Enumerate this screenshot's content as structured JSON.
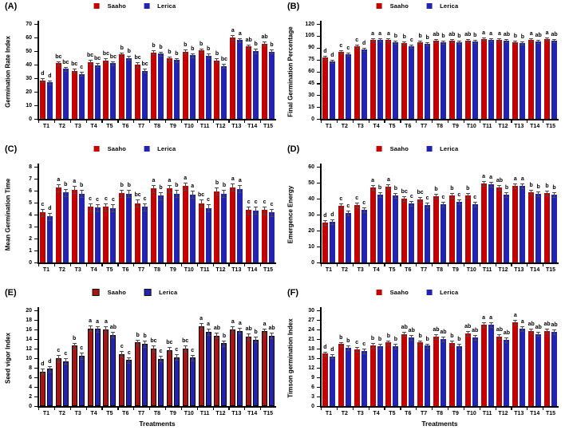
{
  "figure": {
    "legend_labels": [
      "Saaho",
      "Lerica"
    ],
    "colors": {
      "saaho": "#c40000",
      "lerica": "#2323b2",
      "saaho_dark": "#a81414",
      "error": "#4a4a4a"
    },
    "xlabel": "Treatments"
  },
  "chart_data": [
    {
      "panel": "(A)",
      "type": "bar",
      "ylabel": "Germination Rate Index",
      "ylim": [
        0,
        70
      ],
      "ytick_step": 10,
      "error_bar": 1.5,
      "grid": false,
      "legend_position": "top-center",
      "show_xlabel": false,
      "bar_border": false,
      "categories": [
        "T1",
        "T2",
        "T3",
        "T4",
        "T5",
        "T6",
        "T7",
        "T8",
        "T9",
        "T10",
        "T11",
        "T12",
        "T13",
        "T14",
        "T15"
      ],
      "series": [
        {
          "name": "Saaho",
          "color": "#c40000",
          "values": [
            28.5,
            41,
            35.5,
            42,
            43,
            47.5,
            40,
            49,
            44.5,
            49.5,
            50.5,
            43,
            60,
            53.5,
            55.5
          ],
          "letters": [
            "d",
            "bc",
            "bc",
            "bc",
            "bc",
            "b",
            "bc",
            "b",
            "b",
            "b",
            "b",
            "b",
            "a",
            "ab",
            "ab"
          ]
        },
        {
          "name": "Lerica",
          "color": "#2323b2",
          "values": [
            27,
            37,
            33,
            39.5,
            41,
            45,
            35.5,
            48,
            43.5,
            47,
            46.5,
            39,
            58,
            50,
            49.5
          ],
          "letters": [
            "d",
            "bc",
            "c",
            "bc",
            "bc",
            "b",
            "bc",
            "b",
            "b",
            "b",
            "b",
            "bc",
            "a",
            "b",
            "b"
          ]
        }
      ]
    },
    {
      "panel": "(B)",
      "type": "bar",
      "ylabel": "Final Germination Percentage",
      "ylim": [
        0,
        120
      ],
      "ytick_step": 15,
      "error_bar": 2,
      "grid": false,
      "legend_position": "top-center",
      "show_xlabel": false,
      "bar_border": false,
      "categories": [
        "T1",
        "T2",
        "T3",
        "T4",
        "T5",
        "T6",
        "T7",
        "T8",
        "T9",
        "T10",
        "T11",
        "T12",
        "T13",
        "T14",
        "T15"
      ],
      "series": [
        {
          "name": "Saaho",
          "color": "#c40000",
          "values": [
            78,
            85,
            92,
            100,
            100,
            96,
            97,
            99,
            99,
            99,
            101,
            100,
            97,
            100,
            101
          ],
          "letters": [
            "d",
            "c",
            "c",
            "a",
            "a",
            "b",
            "b",
            "ab",
            "ab",
            "ab",
            "a",
            "a",
            "b",
            "a",
            "a"
          ]
        },
        {
          "name": "Lerica",
          "color": "#2323b2",
          "values": [
            73,
            82,
            88,
            100,
            97,
            92,
            95,
            97,
            97,
            98,
            100,
            99,
            96,
            98,
            99
          ],
          "letters": [
            "d",
            "c",
            "d",
            "a",
            "b",
            "c",
            "b",
            "b",
            "b",
            "b",
            "a",
            "ab",
            "b",
            "ab",
            "ab"
          ]
        }
      ]
    },
    {
      "panel": "(C)",
      "type": "bar",
      "ylabel": "Mean Germination Time",
      "ylim": [
        0,
        8
      ],
      "ytick_step": 1,
      "error_bar": 0.3,
      "grid": false,
      "legend_position": "top-center",
      "show_xlabel": false,
      "bar_border": false,
      "categories": [
        "T1",
        "T2",
        "T3",
        "T4",
        "T5",
        "T6",
        "T7",
        "T8",
        "T9",
        "T10",
        "T11",
        "T12",
        "T13",
        "T14",
        "T15"
      ],
      "series": [
        {
          "name": "Saaho",
          "color": "#c40000",
          "values": [
            4.2,
            6.25,
            6.1,
            4.65,
            4.65,
            5.8,
            4.95,
            6.2,
            6.2,
            6.4,
            4.95,
            5.95,
            6.3,
            4.4,
            4.4
          ],
          "letters": [
            "c",
            "a",
            "a",
            "c",
            "c",
            "b",
            "bc",
            "a",
            "a",
            "a",
            "bc",
            "b",
            "a",
            "c",
            "c"
          ]
        },
        {
          "name": "Lerica",
          "color": "#2323b2",
          "values": [
            3.85,
            5.85,
            5.75,
            4.6,
            4.55,
            5.75,
            4.65,
            5.6,
            5.75,
            5.7,
            4.55,
            5.75,
            6.15,
            4.35,
            4.2
          ],
          "letters": [
            "d",
            "b",
            "b",
            "c",
            "c",
            "b",
            "c",
            "b",
            "b",
            "a",
            "c",
            "b",
            "a",
            "c",
            "c"
          ]
        }
      ]
    },
    {
      "panel": "(D)",
      "type": "bar",
      "ylabel": "Emergence Energy",
      "ylim": [
        0,
        60
      ],
      "ytick_step": 10,
      "error_bar": 1.5,
      "grid": false,
      "legend_position": "top-center",
      "show_xlabel": false,
      "bar_border": false,
      "categories": [
        "T1",
        "T2",
        "T3",
        "T4",
        "T5",
        "T6",
        "T7",
        "T8",
        "T9",
        "T10",
        "T11",
        "T12",
        "T13",
        "T14",
        "T15"
      ],
      "series": [
        {
          "name": "Saaho",
          "color": "#c40000",
          "values": [
            25,
            35.5,
            36,
            47,
            47.5,
            40,
            39.5,
            41.5,
            42,
            42,
            49.5,
            47,
            48,
            44,
            43.5
          ],
          "letters": [
            "d",
            "c",
            "c",
            "a",
            "a",
            "bc",
            "bc",
            "b",
            "b",
            "b",
            "a",
            "ab",
            "a",
            "b",
            "b"
          ]
        },
        {
          "name": "Lerica",
          "color": "#2323b2",
          "values": [
            25.5,
            31,
            33,
            42.5,
            42,
            37,
            36,
            36.5,
            38,
            36.5,
            49,
            42.5,
            48,
            43,
            42.5
          ],
          "letters": [
            "d",
            "c",
            "c",
            "b",
            "b",
            "c",
            "c",
            "c",
            "c",
            "c",
            "a",
            "b",
            "a",
            "b",
            "b"
          ]
        }
      ]
    },
    {
      "panel": "(E)",
      "type": "bar",
      "ylabel": "Seed vigor Index",
      "ylim": [
        0,
        20
      ],
      "ytick_step": 2,
      "error_bar": 0.6,
      "grid": false,
      "legend_position": "top-center",
      "show_xlabel": true,
      "bar_border": true,
      "categories": [
        "T1",
        "T2",
        "T3",
        "T4",
        "T5",
        "T6",
        "T7",
        "T8",
        "T9",
        "T10",
        "T11",
        "T12",
        "T13",
        "T14",
        "T15"
      ],
      "series": [
        {
          "name": "Saaho",
          "color": "#a81414",
          "values": [
            7.2,
            10,
            12.6,
            16.2,
            16,
            10.9,
            13.3,
            12,
            11.7,
            12,
            16.7,
            14.7,
            16,
            14.5,
            15.6
          ],
          "letters": [
            "d",
            "c",
            "b",
            "a",
            "a",
            "c",
            "b",
            "bc",
            "bc",
            "bc",
            "a",
            "ab",
            "a",
            "ab",
            "a"
          ]
        },
        {
          "name": "Lerica",
          "color": "#2323b2",
          "values": [
            7.8,
            9.4,
            10.5,
            16.1,
            14.9,
            9.6,
            13,
            9.9,
            10.2,
            10.1,
            15.5,
            13.1,
            15.7,
            13.9,
            14.7
          ],
          "letters": [
            "d",
            "c",
            "c",
            "a",
            "ab",
            "c",
            "b",
            "c",
            "c",
            "c",
            "a",
            "b",
            "a",
            "b",
            "ab"
          ]
        }
      ]
    },
    {
      "panel": "(F)",
      "type": "bar",
      "ylabel": "Timson germination Index",
      "ylim": [
        0,
        30
      ],
      "ytick_step": 3,
      "error_bar": 0.7,
      "grid": false,
      "legend_position": "top-center",
      "show_xlabel": true,
      "bar_border": false,
      "categories": [
        "T1",
        "T2",
        "T3",
        "T4",
        "T5",
        "T6",
        "T7",
        "T8",
        "T9",
        "T10",
        "T11",
        "T12",
        "T13",
        "T14",
        "T15"
      ],
      "series": [
        {
          "name": "Saaho",
          "color": "#c40000",
          "values": [
            16.4,
            19.4,
            17.8,
            19,
            19.9,
            22.6,
            19.9,
            21.7,
            19.7,
            22.8,
            25.5,
            21.8,
            26.3,
            23.5,
            23.5
          ],
          "letters": [
            "d",
            "b",
            "c",
            "b",
            "b",
            "ab",
            "b",
            "ab",
            "b",
            "ab",
            "a",
            "ab",
            "a",
            "ab",
            "ab"
          ]
        },
        {
          "name": "Lerica",
          "color": "#2323b2",
          "values": [
            15.6,
            18.3,
            17.3,
            18.7,
            18.7,
            21.5,
            18.9,
            21,
            18.7,
            21.5,
            25.5,
            20.8,
            24.3,
            22.6,
            23.3
          ],
          "letters": [
            "d",
            "b",
            "c",
            "b",
            "b",
            "ab",
            "b",
            "ab",
            "b",
            "ab",
            "a",
            "ab",
            "a",
            "ab",
            "ab"
          ]
        }
      ]
    }
  ]
}
